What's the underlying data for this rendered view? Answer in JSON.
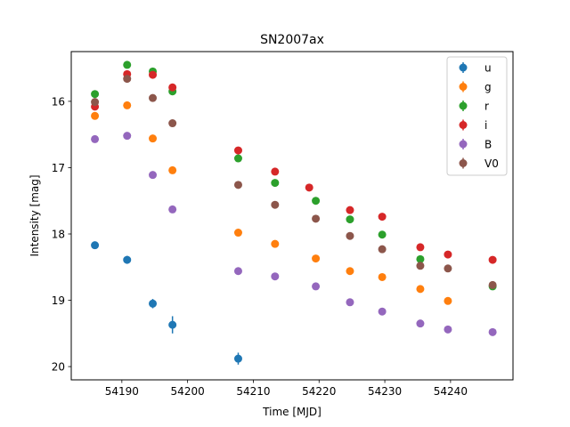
{
  "chart_data": {
    "type": "scatter",
    "title": "SN2007ax",
    "xlabel": "Time [MJD]",
    "ylabel": "Intensity [mag]",
    "xlim": [
      54182.3,
      54249.5
    ],
    "ylim": [
      20.2,
      15.25
    ],
    "y_inverted": true,
    "x_ticks": [
      54190,
      54200,
      54210,
      54220,
      54230,
      54240
    ],
    "y_ticks": [
      16,
      17,
      18,
      19,
      20
    ],
    "grid": false,
    "legend_position": "upper right",
    "series": [
      {
        "name": "u",
        "color": "#1f77b4",
        "points": [
          [
            54185.9,
            18.17,
            0.03
          ],
          [
            54190.8,
            18.39,
            0.06
          ],
          [
            54194.7,
            19.05,
            0.07
          ],
          [
            54197.7,
            19.37,
            0.13
          ],
          [
            54207.7,
            19.88,
            0.09
          ]
        ]
      },
      {
        "name": "g",
        "color": "#ff7f0e",
        "points": [
          [
            54185.9,
            16.22,
            0.02
          ],
          [
            54190.8,
            16.06,
            0.02
          ],
          [
            54194.7,
            16.56,
            0.02
          ],
          [
            54197.7,
            17.04,
            0.02
          ],
          [
            54207.7,
            17.98,
            0.02
          ],
          [
            54213.3,
            18.15,
            0.02
          ],
          [
            54219.5,
            18.37,
            0.02
          ],
          [
            54224.7,
            18.56,
            0.02
          ],
          [
            54229.6,
            18.65,
            0.02
          ],
          [
            54235.4,
            18.83,
            0.02
          ],
          [
            54239.6,
            19.01,
            0.02
          ]
        ]
      },
      {
        "name": "r",
        "color": "#2ca02c",
        "points": [
          [
            54185.9,
            15.89,
            0.02
          ],
          [
            54190.8,
            15.45,
            0.02
          ],
          [
            54194.7,
            15.55,
            0.02
          ],
          [
            54197.7,
            15.85,
            0.02
          ],
          [
            54207.7,
            16.86,
            0.02
          ],
          [
            54213.3,
            17.23,
            0.02
          ],
          [
            54219.5,
            17.5,
            0.02
          ],
          [
            54224.7,
            17.78,
            0.02
          ],
          [
            54229.6,
            18.01,
            0.02
          ],
          [
            54235.4,
            18.38,
            0.02
          ],
          [
            54246.4,
            18.79,
            0.02
          ]
        ]
      },
      {
        "name": "i",
        "color": "#d62728",
        "points": [
          [
            54185.9,
            16.08,
            0.02
          ],
          [
            54190.8,
            15.59,
            0.02
          ],
          [
            54194.7,
            15.6,
            0.02
          ],
          [
            54197.7,
            15.79,
            0.02
          ],
          [
            54207.7,
            16.74,
            0.02
          ],
          [
            54213.3,
            17.06,
            0.02
          ],
          [
            54218.5,
            17.3,
            0.02
          ],
          [
            54224.7,
            17.64,
            0.02
          ],
          [
            54229.6,
            17.74,
            0.02
          ],
          [
            54235.4,
            18.2,
            0.02
          ],
          [
            54239.6,
            18.31,
            0.02
          ],
          [
            54246.4,
            18.39,
            0.02
          ]
        ]
      },
      {
        "name": "B",
        "color": "#9467bd",
        "points": [
          [
            54185.9,
            16.57,
            0.02
          ],
          [
            54190.8,
            16.52,
            0.02
          ],
          [
            54194.7,
            17.11,
            0.02
          ],
          [
            54197.7,
            17.63,
            0.02
          ],
          [
            54207.7,
            18.56,
            0.03
          ],
          [
            54213.3,
            18.64,
            0.02
          ],
          [
            54219.5,
            18.79,
            0.02
          ],
          [
            54224.7,
            19.03,
            0.02
          ],
          [
            54229.6,
            19.17,
            0.02
          ],
          [
            54235.4,
            19.35,
            0.02
          ],
          [
            54239.6,
            19.44,
            0.02
          ],
          [
            54246.4,
            19.48,
            0.04
          ]
        ]
      },
      {
        "name": "V0",
        "color": "#8c564b",
        "points": [
          [
            54185.9,
            16.01,
            0.02
          ],
          [
            54190.8,
            15.66,
            0.02
          ],
          [
            54194.7,
            15.95,
            0.02
          ],
          [
            54197.7,
            16.33,
            0.02
          ],
          [
            54207.7,
            17.26,
            0.02
          ],
          [
            54213.3,
            17.56,
            0.02
          ],
          [
            54219.5,
            17.77,
            0.02
          ],
          [
            54224.7,
            18.03,
            0.02
          ],
          [
            54229.6,
            18.23,
            0.02
          ],
          [
            54235.4,
            18.48,
            0.02
          ],
          [
            54239.6,
            18.52,
            0.02
          ],
          [
            54246.4,
            18.77,
            0.03
          ]
        ]
      }
    ]
  }
}
